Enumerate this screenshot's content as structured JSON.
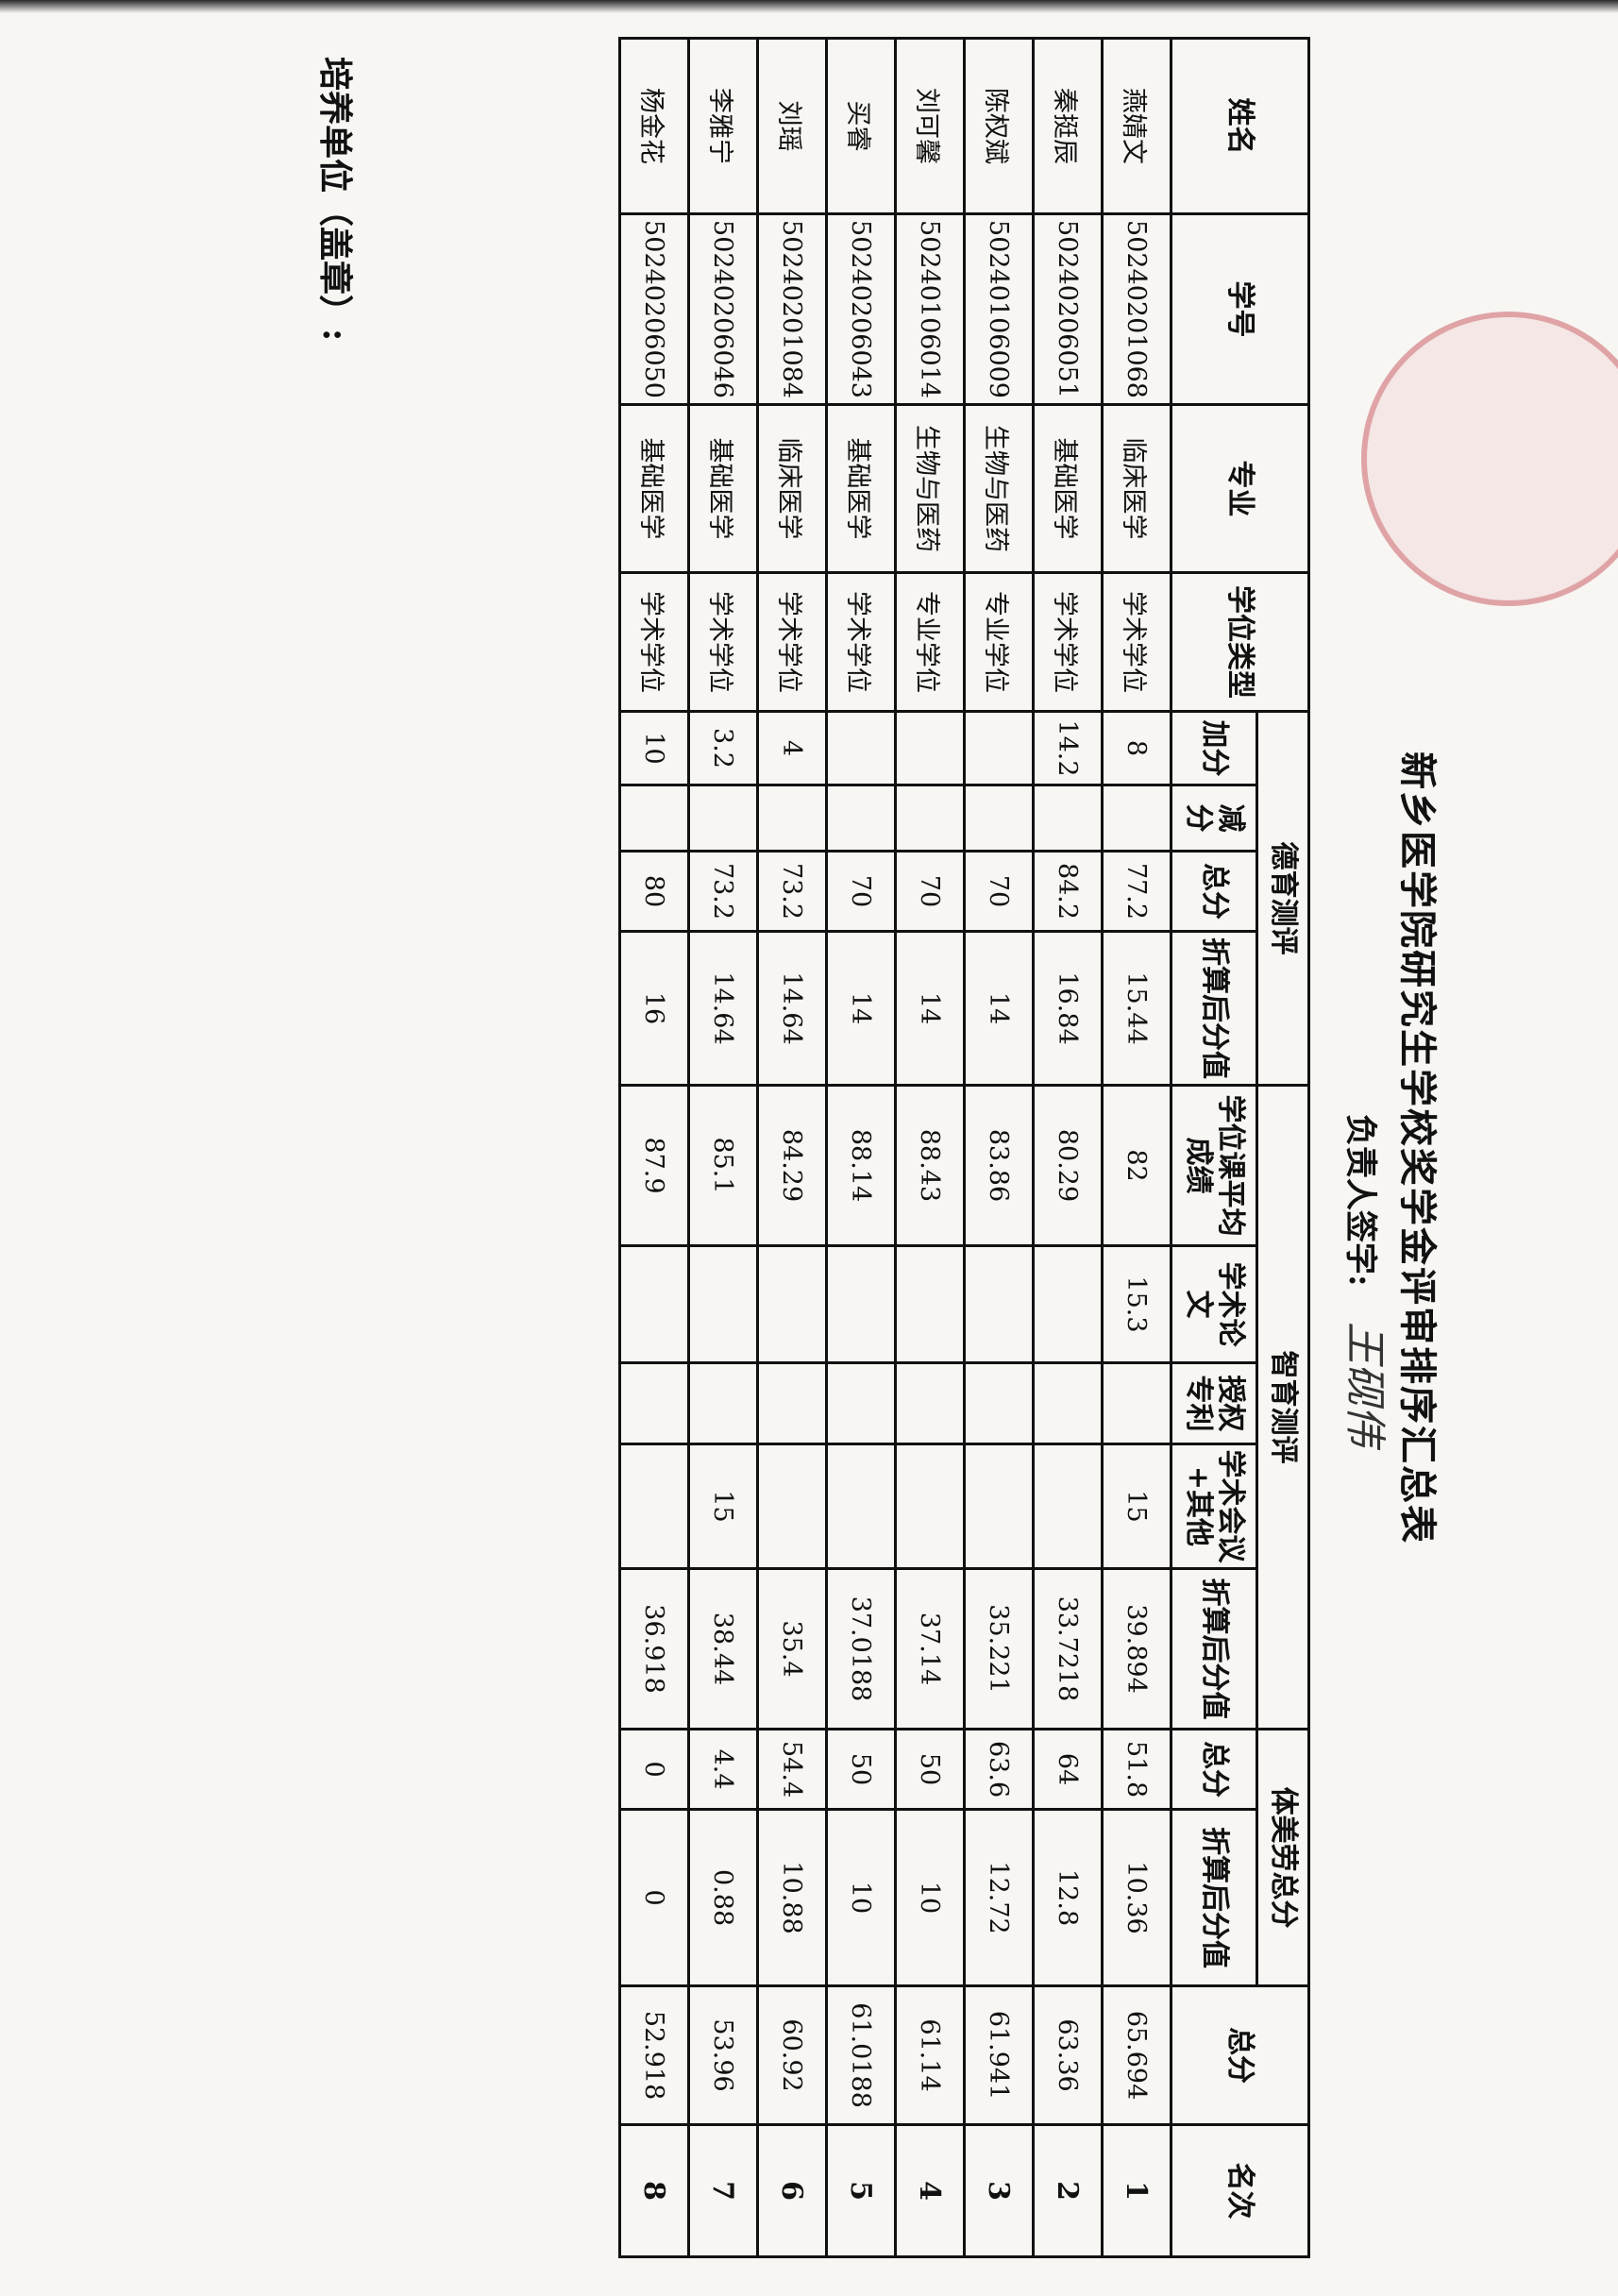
{
  "title": "新乡医学院研究生学校奖学金评审排序汇总表",
  "signer_label": "负责人签字:",
  "signature": "王砚伟",
  "unit_label": "培养单位（盖章）:",
  "stamp_color": "#c8505a",
  "headers": {
    "name": "姓名",
    "student_id": "学号",
    "major": "专业",
    "degree_type": "学位类型",
    "moral": "德育测评",
    "moral_bonus": "加分",
    "moral_deduct": "减分",
    "moral_total": "总分",
    "moral_converted": "折算后分值",
    "intellect": "智育测评",
    "course_avg": "学位课平均成绩",
    "papers": "学术论文",
    "patents": "授权专利",
    "conference_other": "学术会议+其他",
    "intellect_converted": "折算后分值",
    "pe_art_labor": "体美劳总分",
    "pe_total": "总分",
    "pe_converted": "折算后分值",
    "grand_total": "总分",
    "rank": "名次"
  },
  "rows": [
    {
      "name": "燕婧文",
      "id": "50240201068",
      "major": "临床医学",
      "degree": "学术学位",
      "bonus": "8",
      "deduct": "",
      "m_total": "77.2",
      "m_conv": "15.44",
      "course": "82",
      "papers": "15.3",
      "patents": "",
      "conf": "15",
      "i_conv": "39.894",
      "pe_total": "51.8",
      "pe_conv": "10.36",
      "total": "65.694",
      "rank": "1"
    },
    {
      "name": "秦挺辰",
      "id": "50240206051",
      "major": "基础医学",
      "degree": "学术学位",
      "bonus": "14.2",
      "deduct": "",
      "m_total": "84.2",
      "m_conv": "16.84",
      "course": "80.29",
      "papers": "",
      "patents": "",
      "conf": "",
      "i_conv": "33.7218",
      "pe_total": "64",
      "pe_conv": "12.8",
      "total": "63.36",
      "rank": "2"
    },
    {
      "name": "陈权斌",
      "id": "50240106009",
      "major": "生物与医药",
      "degree": "专业学位",
      "bonus": "",
      "deduct": "",
      "m_total": "70",
      "m_conv": "14",
      "course": "83.86",
      "papers": "",
      "patents": "",
      "conf": "",
      "i_conv": "35.221",
      "pe_total": "63.6",
      "pe_conv": "12.72",
      "total": "61.941",
      "rank": "3"
    },
    {
      "name": "刘可馨",
      "id": "50240106014",
      "major": "生物与医药",
      "degree": "专业学位",
      "bonus": "",
      "deduct": "",
      "m_total": "70",
      "m_conv": "14",
      "course": "88.43",
      "papers": "",
      "patents": "",
      "conf": "",
      "i_conv": "37.14",
      "pe_total": "50",
      "pe_conv": "10",
      "total": "61.14",
      "rank": "4"
    },
    {
      "name": "买睿",
      "id": "50240206043",
      "major": "基础医学",
      "degree": "学术学位",
      "bonus": "",
      "deduct": "",
      "m_total": "70",
      "m_conv": "14",
      "course": "88.14",
      "papers": "",
      "patents": "",
      "conf": "",
      "i_conv": "37.0188",
      "pe_total": "50",
      "pe_conv": "10",
      "total": "61.0188",
      "rank": "5"
    },
    {
      "name": "刘瑶",
      "id": "50240201084",
      "major": "临床医学",
      "degree": "学术学位",
      "bonus": "4",
      "deduct": "",
      "m_total": "73.2",
      "m_conv": "14.64",
      "course": "84.29",
      "papers": "",
      "patents": "",
      "conf": "",
      "i_conv": "35.4",
      "pe_total": "54.4",
      "pe_conv": "10.88",
      "total": "60.92",
      "rank": "6"
    },
    {
      "name": "李雅宁",
      "id": "50240206046",
      "major": "基础医学",
      "degree": "学术学位",
      "bonus": "3.2",
      "deduct": "",
      "m_total": "73.2",
      "m_conv": "14.64",
      "course": "85.1",
      "papers": "",
      "patents": "",
      "conf": "15",
      "i_conv": "38.44",
      "pe_total": "4.4",
      "pe_conv": "0.88",
      "total": "53.96",
      "rank": "7"
    },
    {
      "name": "杨金花",
      "id": "50240206050",
      "major": "基础医学",
      "degree": "学术学位",
      "bonus": "10",
      "deduct": "",
      "m_total": "80",
      "m_conv": "16",
      "course": "87.9",
      "papers": "",
      "patents": "",
      "conf": "",
      "i_conv": "36.918",
      "pe_total": "0",
      "pe_conv": "0",
      "total": "52.918",
      "rank": "8"
    }
  ]
}
